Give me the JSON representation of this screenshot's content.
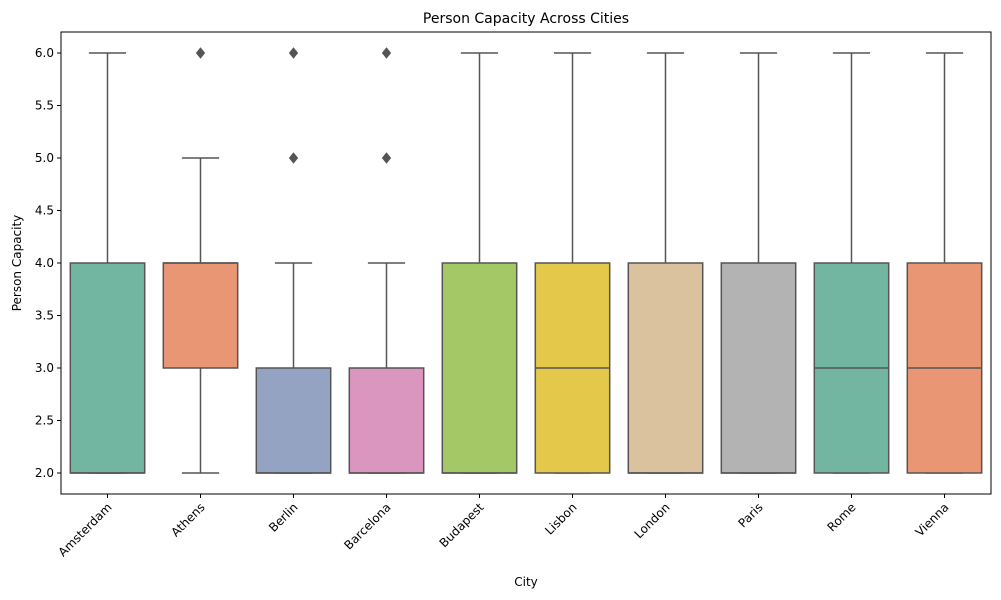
{
  "chart_data": {
    "type": "box",
    "title": "Person Capacity Across Cities",
    "xlabel": "City",
    "ylabel": "Person Capacity",
    "ylim": [
      1.8,
      6.2
    ],
    "yticks": [
      "2.0",
      "2.5",
      "3.0",
      "3.5",
      "4.0",
      "4.5",
      "5.0",
      "5.5",
      "6.0"
    ],
    "categories": [
      "Amsterdam",
      "Athens",
      "Berlin",
      "Barcelona",
      "Budapest",
      "Lisbon",
      "London",
      "Paris",
      "Rome",
      "Vienna"
    ],
    "boxes": [
      {
        "city": "Amsterdam",
        "whisker_low": 2,
        "q1": 2,
        "median": 2,
        "q3": 4,
        "whisker_high": 6,
        "outliers": [],
        "color": "#72b6a1"
      },
      {
        "city": "Athens",
        "whisker_low": 2,
        "q1": 3,
        "median": 4,
        "q3": 4,
        "whisker_high": 5,
        "outliers": [
          6
        ],
        "color": "#e99675"
      },
      {
        "city": "Berlin",
        "whisker_low": 2,
        "q1": 2,
        "median": 2,
        "q3": 3,
        "whisker_high": 4,
        "outliers": [
          5,
          6
        ],
        "color": "#95a3c3"
      },
      {
        "city": "Barcelona",
        "whisker_low": 2,
        "q1": 2,
        "median": 2,
        "q3": 3,
        "whisker_high": 4,
        "outliers": [
          5,
          6
        ],
        "color": "#db96c0"
      },
      {
        "city": "Budapest",
        "whisker_low": 2,
        "q1": 2,
        "median": 2,
        "q3": 4,
        "whisker_high": 6,
        "outliers": [],
        "color": "#a4c865"
      },
      {
        "city": "Lisbon",
        "whisker_low": 2,
        "q1": 2,
        "median": 3,
        "q3": 4,
        "whisker_high": 6,
        "outliers": [],
        "color": "#e4c849"
      },
      {
        "city": "London",
        "whisker_low": 2,
        "q1": 2,
        "median": 2,
        "q3": 4,
        "whisker_high": 6,
        "outliers": [],
        "color": "#d9c29d"
      },
      {
        "city": "Paris",
        "whisker_low": 2,
        "q1": 2,
        "median": 2,
        "q3": 4,
        "whisker_high": 6,
        "outliers": [],
        "color": "#b3b3b3"
      },
      {
        "city": "Rome",
        "whisker_low": 2,
        "q1": 2,
        "median": 3,
        "q3": 4,
        "whisker_high": 6,
        "outliers": [],
        "color": "#72b6a1"
      },
      {
        "city": "Vienna",
        "whisker_low": 2,
        "q1": 2,
        "median": 3,
        "q3": 4,
        "whisker_high": 6,
        "outliers": [],
        "color": "#e99675"
      }
    ],
    "line_color": "#555555",
    "grid": false,
    "legend": "none"
  }
}
